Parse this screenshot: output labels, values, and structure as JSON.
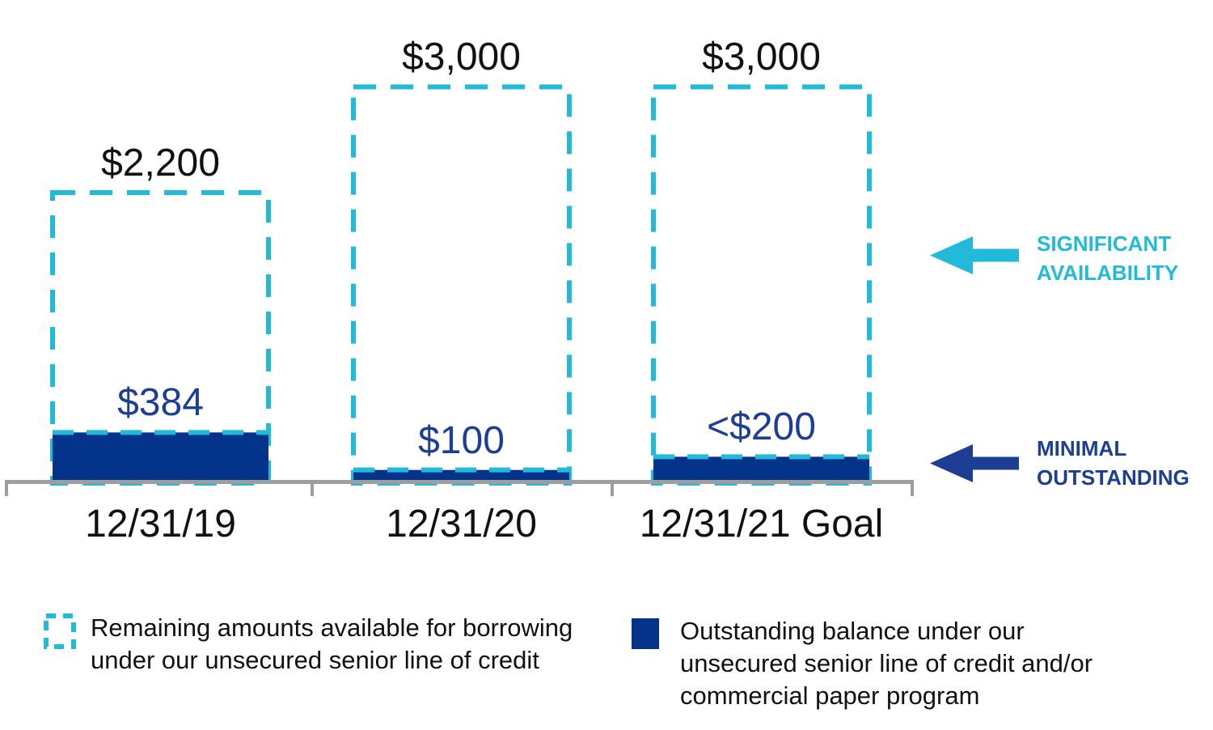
{
  "chart_data": {
    "type": "bar",
    "title": "",
    "unit": "USD millions (implied by $ labels)",
    "categories": [
      "12/31/19",
      "12/31/20",
      "12/31/21 Goal"
    ],
    "series": [
      {
        "name": "Remaining amounts available for borrowing under our unsecured senior line of credit",
        "role": "total-dashed-outline",
        "values": [
          2200,
          3000,
          3000
        ],
        "labels": [
          "$2,200",
          "$3,000",
          "$3,000"
        ]
      },
      {
        "name": "Outstanding balance under our unsecured senior line of credit and/or commercial paper program",
        "role": "filled-bar",
        "values": [
          384,
          100,
          200
        ],
        "labels": [
          "$384",
          "$100",
          "<$200"
        ]
      }
    ],
    "ylim": [
      0,
      3000
    ],
    "grid": false,
    "legend_position": "bottom",
    "axis": "x-only"
  },
  "annotations": {
    "significant": {
      "lines": [
        "SIGNIFICANT",
        "AVAILABILITY"
      ]
    },
    "minimal": {
      "lines": [
        "MINIMAL",
        "OUTSTANDING"
      ]
    }
  },
  "legend": {
    "items": [
      {
        "swatch": "dashed-cyan-square",
        "lines": [
          "Remaining amounts available for borrowing",
          "under our unsecured senior line of credit"
        ]
      },
      {
        "swatch": "solid-navy-square",
        "lines": [
          "Outstanding balance under our",
          "unsecured senior line of credit and/or",
          "commercial paper program"
        ]
      }
    ]
  },
  "colors": {
    "cyan": "#21BAD8",
    "navy_fill": "#04338C",
    "navy_text": "#1C3E94",
    "axis_gray": "#9E9E9E",
    "label_black": "#111111"
  }
}
